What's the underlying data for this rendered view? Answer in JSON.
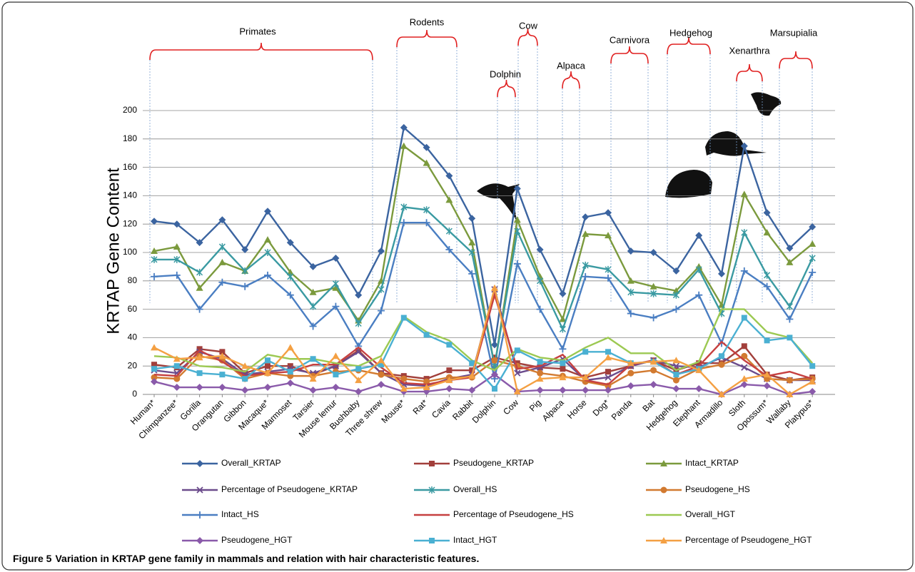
{
  "chart_data": {
    "type": "line",
    "y_label": "KRTAP Gene Content",
    "figure_label": "Figure 5",
    "caption": "Variation in KRTAP gene family in mammals and relation with hair characteristic features.",
    "groups": [
      "Primates",
      "Rodents",
      "Dolphin",
      "Cow",
      "Alpaca",
      "Carnivora",
      "Hedgehog",
      "Xenarthra",
      "Marsupialia"
    ],
    "categories": [
      "Human*",
      "Chimpanzee*",
      "Gorilla",
      "Orangutan",
      "Gibbon",
      "Macaque*",
      "Marmoset",
      "Tarsier",
      "Mouse lemur",
      "Bushbaby",
      "Three shrew",
      "Mouse*",
      "Rat*",
      "Cavia",
      "Rabbit",
      "Dolphin",
      "Cow",
      "Pig",
      "Alpaca",
      "Horse",
      "Dog*",
      "Panda",
      "Bat",
      "Hedgehog",
      "Elephant",
      "Armadillo",
      "Sloth",
      "Opossum*",
      "Wallaby",
      "Platypus*"
    ],
    "ylim": [
      0,
      200
    ],
    "yticks": [
      0,
      20,
      40,
      60,
      80,
      100,
      120,
      140,
      160,
      180,
      200
    ],
    "grid": true,
    "series": [
      {
        "name": "Overall_KRTAP",
        "color": "#3b64a0",
        "marker": "diamond",
        "values": [
          122,
          120,
          107,
          123,
          102,
          129,
          107,
          90,
          96,
          70,
          101,
          188,
          174,
          154,
          124,
          35,
          145,
          102,
          71,
          125,
          128,
          101,
          100,
          87,
          112,
          85,
          175,
          128,
          103,
          118
        ]
      },
      {
        "name": "Pseudogene_KRTAP",
        "color": "#a23f3b",
        "marker": "square",
        "values": [
          21,
          19,
          32,
          30,
          15,
          20,
          20,
          14,
          20,
          31,
          15,
          13,
          11,
          17,
          17,
          26,
          22,
          19,
          18,
          12,
          16,
          20,
          24,
          17,
          22,
          22,
          34,
          14,
          10,
          12
        ]
      },
      {
        "name": "Intact_KRTAP",
        "color": "#7b9a3d",
        "marker": "triangle",
        "values": [
          101,
          104,
          75,
          93,
          87,
          109,
          86,
          72,
          75,
          52,
          80,
          175,
          163,
          137,
          107,
          20,
          123,
          83,
          53,
          113,
          112,
          80,
          76,
          73,
          90,
          63,
          141,
          114,
          93,
          106
        ]
      },
      {
        "name": "Percentage of Pseudogene_KRTAP",
        "color": "#6b4b8c",
        "marker": "x",
        "values": [
          17,
          15,
          30,
          25,
          14,
          16,
          18,
          15,
          20,
          30,
          15,
          7,
          6,
          11,
          14,
          74,
          15,
          19,
          25,
          10,
          12,
          20,
          24,
          20,
          19,
          26,
          19,
          11,
          10,
          10
        ]
      },
      {
        "name": "Overall_HS",
        "color": "#3a9aa2",
        "marker": "asterisk",
        "values": [
          95,
          95,
          86,
          104,
          87,
          100,
          83,
          62,
          78,
          50,
          74,
          132,
          130,
          115,
          100,
          20,
          115,
          80,
          46,
          91,
          88,
          72,
          71,
          70,
          88,
          57,
          114,
          84,
          62,
          96
        ]
      },
      {
        "name": "Pseudogene_HS",
        "color": "#d27a30",
        "marker": "circle",
        "values": [
          12,
          11,
          27,
          24,
          11,
          15,
          13,
          13,
          16,
          17,
          14,
          11,
          9,
          12,
          12,
          24,
          20,
          15,
          13,
          9,
          6,
          15,
          17,
          10,
          18,
          21,
          27,
          11,
          10,
          11
        ]
      },
      {
        "name": "Intact_HS",
        "color": "#4a7ec2",
        "marker": "plus",
        "values": [
          83,
          84,
          60,
          79,
          76,
          84,
          70,
          48,
          62,
          34,
          59,
          121,
          121,
          102,
          85,
          11,
          92,
          60,
          32,
          83,
          82,
          57,
          54,
          60,
          70,
          36,
          87,
          76,
          53,
          86
        ]
      },
      {
        "name": "Percentage of Pseudogene_HS",
        "color": "#c64040",
        "marker": "none",
        "values": [
          14,
          13,
          31,
          23,
          13,
          15,
          16,
          21,
          21,
          33,
          19,
          8,
          7,
          10,
          12,
          70,
          18,
          20,
          28,
          10,
          7,
          21,
          24,
          14,
          20,
          37,
          24,
          13,
          16,
          11
        ]
      },
      {
        "name": "Overall_HGT",
        "color": "#9cc952",
        "marker": "none",
        "values": [
          27,
          26,
          20,
          19,
          16,
          28,
          25,
          25,
          22,
          20,
          27,
          55,
          44,
          38,
          24,
          17,
          32,
          26,
          24,
          33,
          40,
          29,
          29,
          17,
          23,
          60,
          60,
          44,
          40,
          22
        ]
      },
      {
        "name": "Pseudogene_HGT",
        "color": "#8a5aaa",
        "marker": "diamond",
        "values": [
          9,
          5,
          5,
          5,
          3,
          5,
          8,
          3,
          5,
          2,
          7,
          2,
          2,
          4,
          3,
          14,
          2,
          3,
          3,
          3,
          3,
          6,
          7,
          4,
          4,
          0,
          7,
          6,
          0,
          2
        ]
      },
      {
        "name": "Intact_HGT",
        "color": "#4ab0d2",
        "marker": "square",
        "values": [
          18,
          20,
          15,
          14,
          11,
          24,
          16,
          25,
          14,
          18,
          21,
          54,
          42,
          35,
          22,
          4,
          31,
          23,
          22,
          30,
          30,
          22,
          23,
          14,
          18,
          27,
          54,
          38,
          40,
          20
        ]
      },
      {
        "name": "Percentage of Pseudogene_HGT",
        "color": "#f4a043",
        "marker": "triangle",
        "values": [
          33,
          25,
          26,
          27,
          20,
          15,
          33,
          11,
          27,
          10,
          24,
          4,
          5,
          10,
          13,
          75,
          2,
          11,
          12,
          12,
          26,
          22,
          23,
          24,
          17,
          0,
          11,
          14,
          0,
          9
        ]
      }
    ]
  }
}
